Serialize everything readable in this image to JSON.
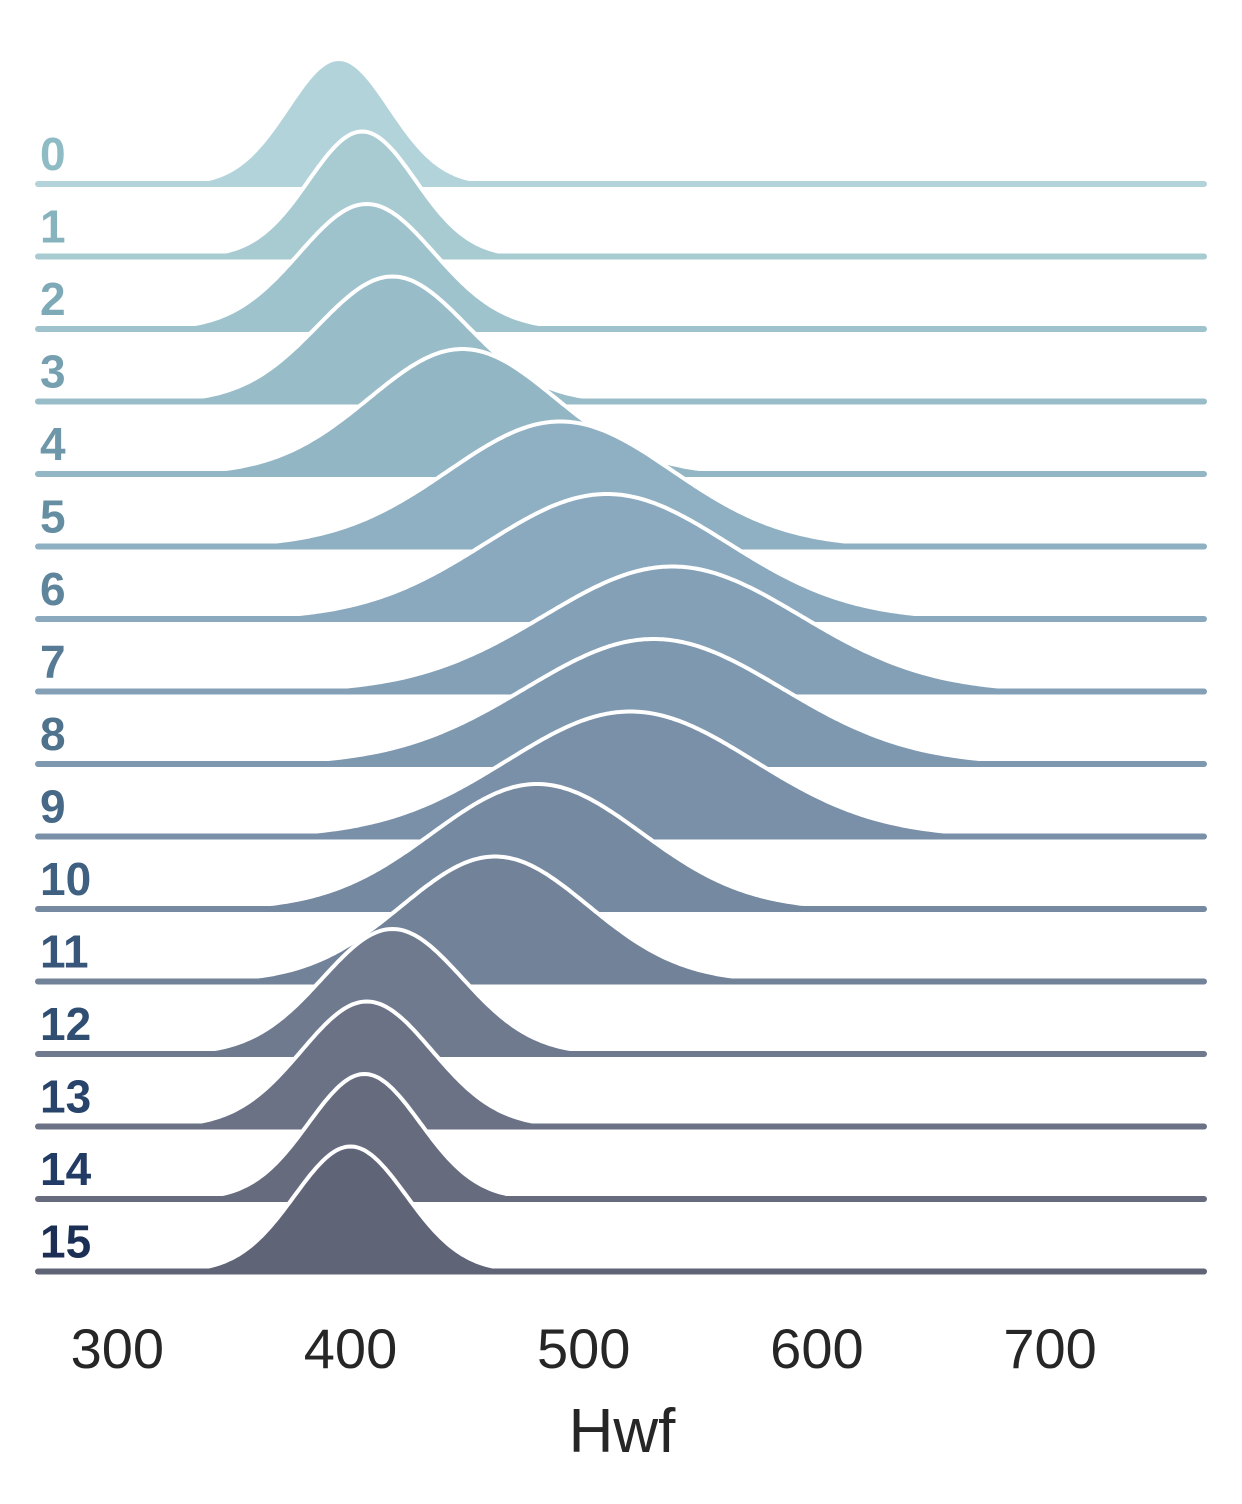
{
  "chart_data": {
    "type": "ridgeline",
    "xlabel": "Hwf",
    "xlim": [
      266,
      766
    ],
    "x_ticks": [
      300,
      400,
      500,
      600,
      700
    ],
    "grid": false,
    "legend": "none",
    "rows": [
      {
        "label": "0",
        "mode": 395,
        "sd": 22,
        "color": "#b2d3d9"
      },
      {
        "label": "1",
        "mode": 405,
        "sd": 23,
        "color": "#a8cbd2"
      },
      {
        "label": "2",
        "mode": 407,
        "sd": 29,
        "color": "#9fc3cd"
      },
      {
        "label": "3",
        "mode": 418,
        "sd": 32,
        "color": "#98bcc8"
      },
      {
        "label": "4",
        "mode": 448,
        "sd": 40,
        "color": "#93b6c4"
      },
      {
        "label": "5",
        "mode": 490,
        "sd": 48,
        "color": "#8fb0c2"
      },
      {
        "label": "6",
        "mode": 510,
        "sd": 52,
        "color": "#8aa8be"
      },
      {
        "label": "7",
        "mode": 538,
        "sd": 55,
        "color": "#83a0b7"
      },
      {
        "label": "8",
        "mode": 530,
        "sd": 55,
        "color": "#7e98b0"
      },
      {
        "label": "9",
        "mode": 520,
        "sd": 53,
        "color": "#7990a8"
      },
      {
        "label": "10",
        "mode": 480,
        "sd": 45,
        "color": "#7589a1"
      },
      {
        "label": "11",
        "mode": 462,
        "sd": 40,
        "color": "#728298"
      },
      {
        "label": "12",
        "mode": 418,
        "sd": 30,
        "color": "#6f7a8f"
      },
      {
        "label": "13",
        "mode": 407,
        "sd": 28,
        "color": "#6b7286"
      },
      {
        "label": "14",
        "mode": 406,
        "sd": 24,
        "color": "#666b7e"
      },
      {
        "label": "15",
        "mode": 400,
        "sd": 24,
        "color": "#606477"
      }
    ],
    "label_colors": [
      "#8fbcc4",
      "#86b3bd",
      "#7ea9b6",
      "#76a0af",
      "#6e97a9",
      "#668ea2",
      "#5e859b",
      "#577b94",
      "#4f728d",
      "#476987",
      "#3f6080",
      "#385679",
      "#304d72",
      "#28446b",
      "#213b64",
      "#1b2f55"
    ]
  }
}
